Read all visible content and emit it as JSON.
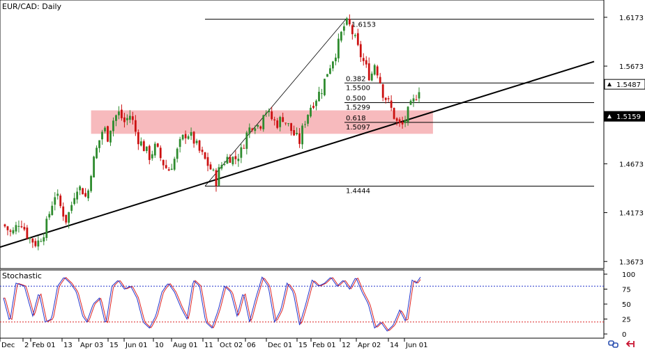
{
  "window": {
    "title": "EUR/CAD: Daily"
  },
  "colors": {
    "bull": "#2e8b2e",
    "bear": "#cc1111",
    "zone": "#f4a3a7",
    "stoch_main": "#2233cc",
    "stoch_signal": "#dd2222",
    "level_high": "#2233cc",
    "level_low": "#dd2222"
  },
  "chart_data": [
    {
      "type": "candlestick",
      "title": "EUR/CAD: Daily",
      "ylim": [
        1.36,
        1.635
      ],
      "yticks": [
        "1.6173",
        "1.5673",
        "1.5487",
        "1.5159",
        "1.4673",
        "1.4173",
        "1.3673"
      ],
      "yticks_values": [
        1.6173,
        1.5673,
        1.5487,
        1.5159,
        1.4673,
        1.4173,
        1.3673
      ],
      "price_tags": [
        {
          "value": 1.5487,
          "text": "1.5487"
        },
        {
          "value": 1.5159,
          "text": "1.5159"
        }
      ],
      "xticks": [
        "Dec",
        "2",
        "Feb 01",
        "13",
        "Apr 03",
        "15",
        "Jun 01",
        "10",
        "Aug 01",
        "11",
        "Oct 02",
        "06",
        "Dec 01",
        "15",
        "Feb 01",
        "12",
        "Apr 02",
        "14",
        "Jun 01"
      ],
      "fib_levels": [
        {
          "value": 1.6153,
          "text": "1.6153"
        },
        {
          "value": 1.55,
          "ratio": "0.382",
          "text": "1.5500"
        },
        {
          "value": 1.5299,
          "ratio": "0.500",
          "text": "1.5299"
        },
        {
          "value": 1.5097,
          "ratio": "0.618",
          "text": "1.5097"
        },
        {
          "value": 1.4444,
          "text": "1.4444"
        }
      ],
      "zone": [
        1.498,
        1.522
      ],
      "trendline": [
        [
          0,
          1.382
        ],
        [
          1,
          1.572
        ]
      ],
      "path": [
        [
          0,
          1.405
        ],
        [
          0.02,
          1.395
        ],
        [
          0.04,
          1.41
        ],
        [
          0.06,
          1.392
        ],
        [
          0.08,
          1.385
        ],
        [
          0.1,
          1.4
        ],
        [
          0.115,
          1.425
        ],
        [
          0.125,
          1.438
        ],
        [
          0.135,
          1.425
        ],
        [
          0.15,
          1.41
        ],
        [
          0.16,
          1.42
        ],
        [
          0.175,
          1.445
        ],
        [
          0.19,
          1.44
        ],
        [
          0.2,
          1.43
        ],
        [
          0.21,
          1.46
        ],
        [
          0.225,
          1.485
        ],
        [
          0.24,
          1.505
        ],
        [
          0.25,
          1.495
        ],
        [
          0.26,
          1.51
        ],
        [
          0.275,
          1.52
        ],
        [
          0.29,
          1.51
        ],
        [
          0.305,
          1.518
        ],
        [
          0.32,
          1.495
        ],
        [
          0.335,
          1.485
        ],
        [
          0.35,
          1.475
        ],
        [
          0.365,
          1.485
        ],
        [
          0.38,
          1.47
        ],
        [
          0.395,
          1.46
        ],
        [
          0.41,
          1.472
        ],
        [
          0.425,
          1.49
        ],
        [
          0.44,
          1.5
        ],
        [
          0.455,
          1.492
        ],
        [
          0.47,
          1.48
        ],
        [
          0.485,
          1.47
        ],
        [
          0.5,
          1.46
        ],
        [
          0.51,
          1.45
        ],
        [
          0.52,
          1.465
        ],
        [
          0.54,
          1.475
        ],
        [
          0.555,
          1.472
        ],
        [
          0.57,
          1.48
        ],
        [
          0.585,
          1.5
        ],
        [
          0.6,
          1.51
        ],
        [
          0.615,
          1.505
        ],
        [
          0.625,
          1.525
        ],
        [
          0.64,
          1.515
        ],
        [
          0.655,
          1.508
        ],
        [
          0.67,
          1.515
        ],
        [
          0.685,
          1.505
        ],
        [
          0.7,
          1.495
        ],
        [
          0.71,
          1.49
        ],
        [
          0.72,
          1.508
        ],
        [
          0.735,
          1.525
        ],
        [
          0.75,
          1.535
        ],
        [
          0.765,
          1.545
        ],
        [
          0.775,
          1.56
        ],
        [
          0.79,
          1.575
        ],
        [
          0.8,
          1.585
        ],
        [
          0.81,
          1.6
        ],
        [
          0.82,
          1.612
        ],
        [
          0.83,
          1.608
        ],
        [
          0.84,
          1.598
        ],
        [
          0.85,
          1.585
        ],
        [
          0.86,
          1.575
        ],
        [
          0.87,
          1.565
        ],
        [
          0.88,
          1.555
        ],
        [
          0.89,
          1.57
        ],
        [
          0.9,
          1.558
        ],
        [
          0.91,
          1.54
        ],
        [
          0.925,
          1.528
        ],
        [
          0.935,
          1.518
        ],
        [
          0.945,
          1.508
        ],
        [
          0.955,
          1.505
        ],
        [
          0.965,
          1.515
        ],
        [
          0.975,
          1.525
        ],
        [
          0.985,
          1.532
        ],
        [
          1,
          1.549
        ]
      ]
    },
    {
      "type": "line",
      "title": "Stochastic",
      "ylim": [
        0,
        100
      ],
      "yticks": [
        "100",
        "75",
        "50",
        "25",
        "0"
      ],
      "yticks_values": [
        100,
        75,
        50,
        25,
        0
      ],
      "levels": [
        80,
        20
      ],
      "signal_path": [
        [
          0,
          60
        ],
        [
          0.015,
          20
        ],
        [
          0.03,
          85
        ],
        [
          0.05,
          80
        ],
        [
          0.07,
          30
        ],
        [
          0.085,
          70
        ],
        [
          0.1,
          20
        ],
        [
          0.115,
          25
        ],
        [
          0.13,
          80
        ],
        [
          0.145,
          95
        ],
        [
          0.16,
          85
        ],
        [
          0.175,
          70
        ],
        [
          0.19,
          30
        ],
        [
          0.2,
          20
        ],
        [
          0.215,
          50
        ],
        [
          0.23,
          60
        ],
        [
          0.245,
          15
        ],
        [
          0.26,
          80
        ],
        [
          0.275,
          90
        ],
        [
          0.29,
          75
        ],
        [
          0.305,
          80
        ],
        [
          0.32,
          60
        ],
        [
          0.335,
          20
        ],
        [
          0.35,
          10
        ],
        [
          0.365,
          30
        ],
        [
          0.38,
          70
        ],
        [
          0.395,
          85
        ],
        [
          0.41,
          70
        ],
        [
          0.425,
          45
        ],
        [
          0.44,
          25
        ],
        [
          0.455,
          90
        ],
        [
          0.47,
          80
        ],
        [
          0.485,
          20
        ],
        [
          0.5,
          10
        ],
        [
          0.515,
          40
        ],
        [
          0.53,
          80
        ],
        [
          0.545,
          70
        ],
        [
          0.56,
          30
        ],
        [
          0.575,
          70
        ],
        [
          0.59,
          20
        ],
        [
          0.605,
          60
        ],
        [
          0.62,
          95
        ],
        [
          0.635,
          80
        ],
        [
          0.65,
          20
        ],
        [
          0.665,
          40
        ],
        [
          0.68,
          85
        ],
        [
          0.695,
          70
        ],
        [
          0.71,
          15
        ],
        [
          0.725,
          50
        ],
        [
          0.74,
          90
        ],
        [
          0.755,
          80
        ],
        [
          0.77,
          85
        ],
        [
          0.785,
          95
        ],
        [
          0.8,
          80
        ],
        [
          0.815,
          90
        ],
        [
          0.83,
          75
        ],
        [
          0.845,
          95
        ],
        [
          0.86,
          70
        ],
        [
          0.875,
          50
        ],
        [
          0.89,
          10
        ],
        [
          0.905,
          20
        ],
        [
          0.92,
          5
        ],
        [
          0.935,
          15
        ],
        [
          0.95,
          40
        ],
        [
          0.965,
          20
        ],
        [
          0.98,
          90
        ],
        [
          0.99,
          85
        ],
        [
          1,
          95
        ]
      ]
    }
  ]
}
